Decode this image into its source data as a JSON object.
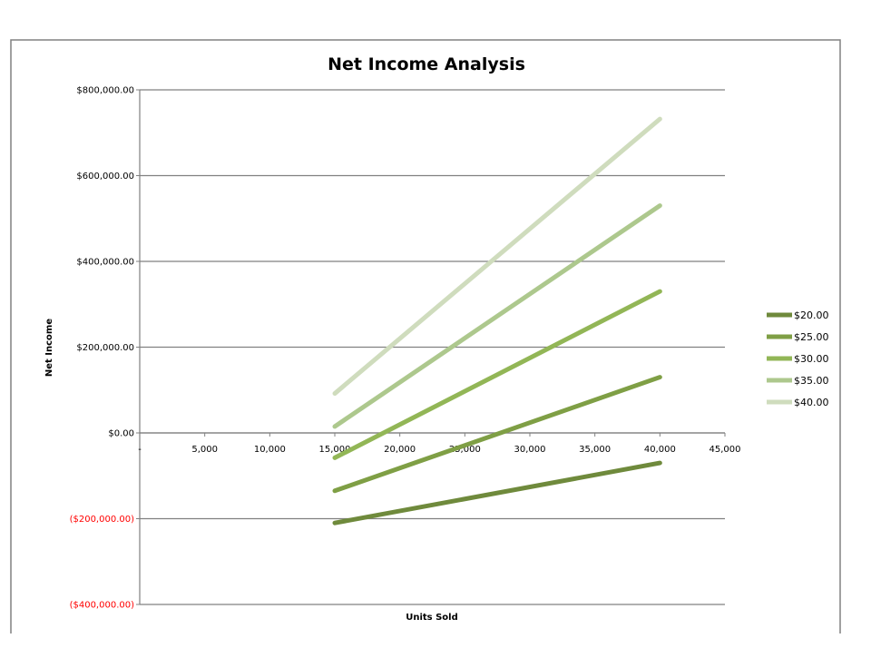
{
  "chart_data": {
    "type": "line",
    "title": "Net Income Analysis",
    "xlabel": "Units Sold",
    "ylabel": "Net Income",
    "xlim": [
      0,
      45000
    ],
    "ylim": [
      -400000,
      800000
    ],
    "x_ticks": [
      0,
      5000,
      10000,
      15000,
      20000,
      25000,
      30000,
      35000,
      40000,
      45000
    ],
    "x_tick_labels": [
      "-",
      "5,000",
      "10,000",
      "15,000",
      "20,000",
      "25,000",
      "30,000",
      "35,000",
      "40,000",
      "45,000"
    ],
    "y_ticks": [
      800000,
      600000,
      400000,
      200000,
      0,
      -200000,
      -400000
    ],
    "y_tick_labels": [
      "$800,000.00",
      "$600,000.00",
      "$400,000.00",
      "$200,000.00",
      "$0.00",
      "($200,000.00)",
      "($400,000.00)"
    ],
    "grid": true,
    "legend_position": "right",
    "x": [
      15000,
      40000
    ],
    "series": [
      {
        "name": "$20.00",
        "color": "#6f8a3c",
        "values": [
          -210000,
          -70000
        ]
      },
      {
        "name": "$25.00",
        "color": "#7f9f45",
        "values": [
          -135000,
          130000
        ]
      },
      {
        "name": "$30.00",
        "color": "#92b656",
        "values": [
          -58000,
          330000
        ]
      },
      {
        "name": "$35.00",
        "color": "#adc88d",
        "values": [
          15000,
          530000
        ]
      },
      {
        "name": "$40.00",
        "color": "#cfdcbd",
        "values": [
          92000,
          732000
        ]
      }
    ]
  }
}
